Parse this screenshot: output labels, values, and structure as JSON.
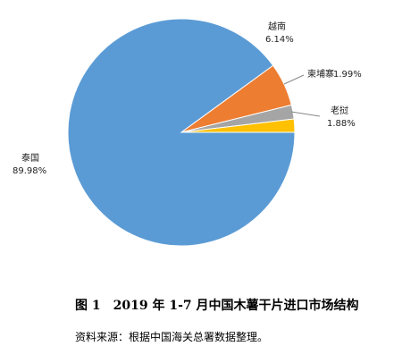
{
  "chart_data": {
    "type": "pie",
    "title": "图 1　2019 年 1-7 月中国木薯干片进口市场结构",
    "source": "资料来源：根据中国海关总署数据整理。",
    "categories": [
      "泰国",
      "越南",
      "柬埔寨",
      "老挝"
    ],
    "values": [
      89.98,
      6.14,
      1.99,
      1.88
    ],
    "value_labels": [
      "89.98%",
      "6.14%",
      "1.99%",
      "1.88%"
    ],
    "colors": [
      "#5b9bd5",
      "#ed7d31",
      "#a5a5a5",
      "#ffc000"
    ]
  }
}
